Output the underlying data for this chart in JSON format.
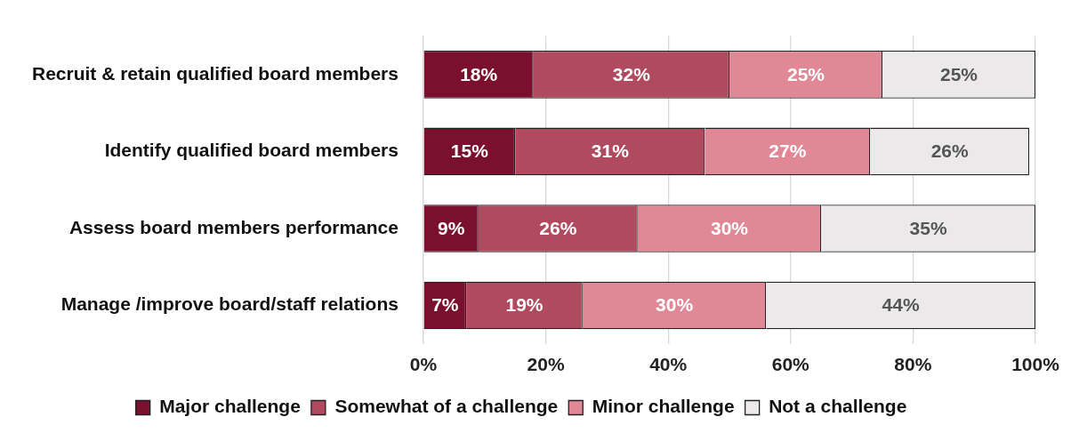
{
  "chart_data": {
    "type": "bar",
    "orientation": "horizontal",
    "stacked": true,
    "categories": [
      "Recruit & retain qualified board members",
      "Identify qualified board members",
      "Assess board members performance",
      "Manage /improve board/staff relations"
    ],
    "series": [
      {
        "name": "Major challenge",
        "color": "#7a0f2e",
        "values": [
          18,
          15,
          9,
          7
        ],
        "value_labels": [
          "18%",
          "15%",
          "9%",
          "7%"
        ]
      },
      {
        "name": "Somewhat of a challenge",
        "color": "#b04a5f",
        "values": [
          32,
          31,
          26,
          19
        ],
        "value_labels": [
          "32%",
          "31%",
          "26%",
          "19%"
        ]
      },
      {
        "name": "Minor challenge",
        "color": "#e08896",
        "values": [
          25,
          27,
          30,
          30
        ],
        "value_labels": [
          "25%",
          "27%",
          "30%",
          "30%"
        ]
      },
      {
        "name": "Not a challenge",
        "color": "#ece9ea",
        "values": [
          25,
          26,
          35,
          44
        ],
        "value_labels": [
          "25%",
          "26%",
          "35%",
          "44%"
        ]
      }
    ],
    "xlim": [
      0,
      100
    ],
    "xticks": [
      {
        "value": 0,
        "label": "0%"
      },
      {
        "value": 20,
        "label": "20%"
      },
      {
        "value": 40,
        "label": "40%"
      },
      {
        "value": 60,
        "label": "60%"
      },
      {
        "value": 80,
        "label": "80%"
      },
      {
        "value": 100,
        "label": "100%"
      }
    ],
    "grid": "x",
    "legend": "bottom"
  }
}
